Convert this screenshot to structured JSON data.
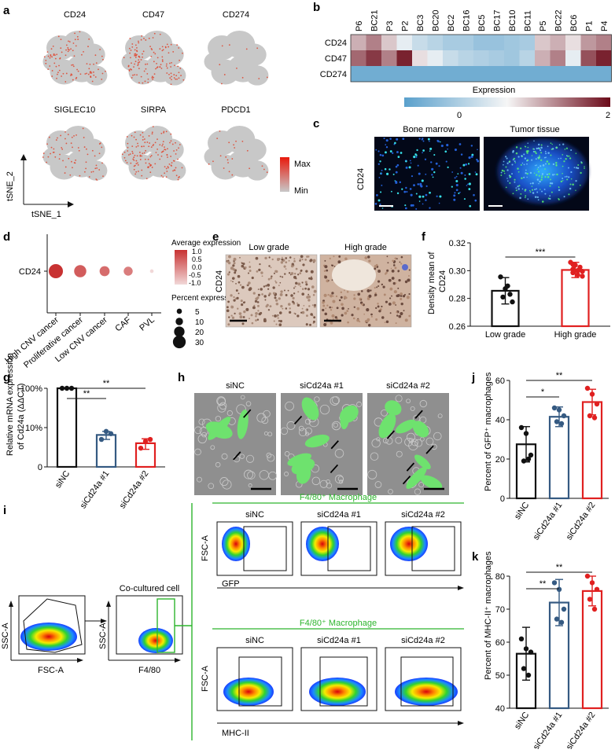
{
  "panels": {
    "a": {
      "letter": "a",
      "plots": [
        "CD24",
        "CD47",
        "CD274",
        "SIGLEC10",
        "SIRPA",
        "PDCD1"
      ],
      "xaxis": "tSNE_1",
      "yaxis": "tSNE_2",
      "legend_max": "Max",
      "legend_min": "Min",
      "intensity": [
        0.45,
        0.6,
        0.05,
        0.3,
        0.65,
        0.1
      ]
    },
    "b": {
      "letter": "b",
      "columns": [
        "P6",
        "BC21",
        "P3",
        "P2",
        "BC3",
        "BC20",
        "BC2",
        "BC16",
        "BC5",
        "BC17",
        "BC10",
        "BC11",
        "P5",
        "BC22",
        "BC6",
        "P1",
        "P4"
      ],
      "rows": [
        "CD24",
        "CD47",
        "CD274"
      ],
      "values": [
        [
          1.3,
          1.5,
          1.2,
          0.9,
          0.7,
          0.6,
          0.5,
          0.5,
          0.4,
          0.4,
          0.45,
          0.5,
          1.2,
          1.3,
          1.1,
          1.4,
          1.5
        ],
        [
          1.6,
          1.8,
          1.5,
          1.9,
          1.1,
          0.9,
          0.7,
          0.6,
          0.55,
          0.5,
          0.45,
          0.6,
          1.3,
          1.5,
          0.9,
          1.7,
          1.9
        ],
        [
          0.15,
          0.15,
          0.15,
          0.15,
          0.15,
          0.15,
          0.15,
          0.15,
          0.15,
          0.15,
          0.15,
          0.15,
          0.15,
          0.15,
          0.15,
          0.15,
          0.15
        ]
      ],
      "legend_title": "Expression",
      "legend_min": "0",
      "legend_max": "2",
      "colors": {
        "low": "#5aa0cc",
        "mid": "#f6f6f6",
        "high": "#6b0a19"
      }
    },
    "c": {
      "letter": "c",
      "label1": "Bone marrow",
      "label2": "Tumor tissue",
      "ylabel": "CD24"
    },
    "d": {
      "letter": "d",
      "row": "CD24",
      "categories": [
        "High CNV cancer",
        "Proliferative cancer",
        "Low CNV cancer",
        "CAF",
        "PVL"
      ],
      "sizes": [
        30,
        22,
        15,
        12,
        2
      ],
      "expr": [
        1.0,
        0.5,
        0.3,
        0.1,
        -1.0
      ],
      "legend_color_title": "Average expression",
      "color_ticks": [
        "1.0",
        "0.5",
        "0.0",
        "-0.5",
        "-1.0"
      ],
      "legend_size_title": "Percent expressed",
      "size_ticks": [
        "5",
        "10",
        "20",
        "30"
      ],
      "size_values": [
        5,
        10,
        20,
        30
      ]
    },
    "e": {
      "letter": "e",
      "label1": "Low grade",
      "label2": "High grade",
      "ylabel": "CD24"
    },
    "f": {
      "letter": "f",
      "ylabel_l1": "Density mean of",
      "ylabel_l2": "CD24",
      "yticks": [
        "0.32",
        "0.30",
        "0.28",
        "0.26"
      ],
      "ylim": [
        0.26,
        0.32
      ],
      "categories": [
        "Low grade",
        "High grade"
      ],
      "means": [
        0.2855,
        0.3005
      ],
      "errors": [
        0.0095,
        0.0055
      ],
      "points": [
        [
          0.2955,
          0.287,
          0.283,
          0.281,
          0.289,
          0.2775
        ],
        [
          0.306,
          0.304,
          0.3025,
          0.301,
          0.3,
          0.2995,
          0.2985,
          0.297,
          0.296,
          0.3045,
          0.3
        ]
      ],
      "sig": "***"
    },
    "g": {
      "letter": "g",
      "ylabel_l1": "Relative mRNA expression",
      "ylabel_l2": "of Cd24a (ΔΔCT)",
      "yticks": [
        "100%",
        "10%",
        "0"
      ],
      "categories": [
        "siNC",
        "siCd24a #1",
        "siCd24a #2"
      ],
      "means": [
        1.0,
        0.065,
        0.04
      ],
      "errors": [
        0.0,
        0.015,
        0.012
      ],
      "points": [
        [
          1.0,
          1.0,
          1.0
        ],
        [
          0.05,
          0.08,
          0.07
        ],
        [
          0.03,
          0.045,
          0.05
        ]
      ],
      "sig1": "**",
      "sig2": "**"
    },
    "h": {
      "letter": "h",
      "labels": [
        "siNC",
        "siCd24a #1",
        "siCd24a #2"
      ]
    },
    "i": {
      "letter": "i",
      "ssc": "SSC-A",
      "fsc": "FSC-A",
      "cocultured": "Co-cultured cell",
      "f480": "F4/80",
      "macro_title_top": "F4/80⁺ Macrophage",
      "macro_title_bottom": "F4/80⁺ Macrophage",
      "groups": [
        "siNC",
        "siCd24a #1",
        "siCd24a #2"
      ],
      "gfp": "GFP",
      "mhc": "MHC-II",
      "green": "#2db52d"
    },
    "j": {
      "letter": "j",
      "ylabel": "Percent of GFP⁺ macrophages",
      "yticks": [
        "60",
        "40",
        "20",
        "0"
      ],
      "ylim": [
        0,
        60
      ],
      "categories": [
        "siNC",
        "siCd24a #1",
        "siCd24a #2"
      ],
      "means": [
        27.5,
        41.5,
        49
      ],
      "errors": [
        9,
        5,
        6.5
      ],
      "points": [
        [
          36,
          33,
          22,
          19,
          20
        ],
        [
          46,
          45,
          42,
          39,
          38
        ],
        [
          56,
          53,
          48,
          42,
          41
        ]
      ],
      "sig1": "*",
      "sig2": "**"
    },
    "k": {
      "letter": "k",
      "ylabel": "Percent of MHC-II⁺ macrophages",
      "yticks": [
        "80",
        "70",
        "60",
        "50",
        "40"
      ],
      "ylim": [
        40,
        80
      ],
      "categories": [
        "siNC",
        "siCd24a #1",
        "siCd24a #2"
      ],
      "means": [
        56.5,
        72,
        75.5
      ],
      "errors": [
        8,
        7,
        4.5
      ],
      "points": [
        [
          61,
          58,
          57,
          52,
          50
        ],
        [
          78,
          76,
          70,
          67,
          66
        ],
        [
          80,
          78,
          76,
          73,
          70
        ]
      ],
      "sig1": "**",
      "sig2": "**"
    },
    "colors": {
      "blue": "#355a82",
      "red": "#e02020",
      "black": "#111111"
    }
  }
}
